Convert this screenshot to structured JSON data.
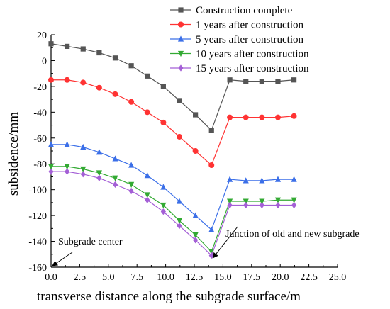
{
  "chart_data": {
    "type": "line",
    "xlabel": "transverse distance along the subgrade surface/m",
    "ylabel": "subsidence/mm",
    "xlim": [
      0,
      25
    ],
    "ylim": [
      -160,
      20
    ],
    "xticks": [
      "0.0",
      "2.5",
      "5.0",
      "7.5",
      "10.0",
      "12.5",
      "15.0",
      "17.5",
      "20.0",
      "22.5",
      "25.0"
    ],
    "yticks": [
      "20",
      "0",
      "-20",
      "-40",
      "-60",
      "-80",
      "-100",
      "-120",
      "-140",
      "-160"
    ],
    "grid": false,
    "legend_position": "top-right",
    "x": [
      0,
      1.4,
      2.8,
      4.2,
      5.6,
      7.0,
      8.4,
      9.8,
      11.2,
      12.6,
      14.0,
      15.6,
      17.0,
      18.4,
      19.8,
      21.2
    ],
    "series": [
      {
        "name": "Construction complete",
        "color": "#555555",
        "marker": "square",
        "values": [
          13,
          11,
          9,
          6,
          2,
          -4,
          -12,
          -20,
          -31,
          -42,
          -54,
          -15,
          -16,
          -16,
          -16,
          -15
        ]
      },
      {
        "name": "1 years after construction",
        "color": "#ff3333",
        "marker": "circle",
        "values": [
          -15,
          -15,
          -17,
          -21,
          -26,
          -32,
          -40,
          -48,
          -59,
          -70,
          -81,
          -44,
          -44,
          -44,
          -44,
          -43
        ]
      },
      {
        "name": "5 years after construction",
        "color": "#3b6fe8",
        "marker": "triangle-up",
        "values": [
          -65,
          -65,
          -67,
          -71,
          -76,
          -81,
          -89,
          -98,
          -109,
          -120,
          -131,
          -92,
          -93,
          -93,
          -92,
          -92
        ]
      },
      {
        "name": "10 years after construction",
        "color": "#33aa33",
        "marker": "triangle-down",
        "values": [
          -82,
          -82,
          -84,
          -87,
          -91,
          -96,
          -104,
          -112,
          -124,
          -135,
          -148,
          -109,
          -109,
          -109,
          -108,
          -108
        ]
      },
      {
        "name": "15 years after construction",
        "color": "#a45fd6",
        "marker": "diamond",
        "values": [
          -86,
          -86,
          -88,
          -91,
          -96,
          -101,
          -108,
          -117,
          -128,
          -139,
          -151,
          -112,
          -112,
          -112,
          -112,
          -112
        ]
      }
    ],
    "annotations": [
      {
        "text": "Subgrade center",
        "x": 0,
        "y": -160
      },
      {
        "text": "Junction of old and new subgrade",
        "x": 14,
        "y": -155
      }
    ]
  }
}
